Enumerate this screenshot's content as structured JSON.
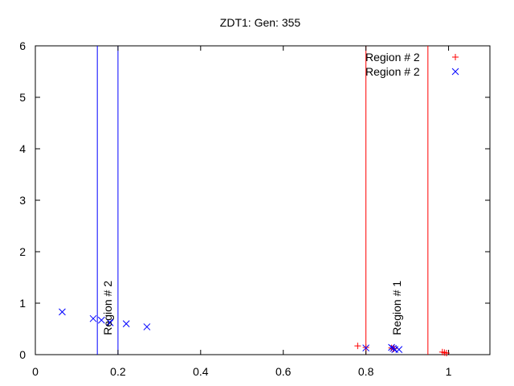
{
  "chart_data": {
    "type": "scatter",
    "title": "ZDT1: Gen: 355",
    "xlabel": "",
    "ylabel": "",
    "xlim": [
      0,
      1.1
    ],
    "ylim": [
      0,
      6
    ],
    "xticks": [
      0,
      0.2,
      0.4,
      0.6,
      0.8,
      1
    ],
    "xtick_labels": [
      "0",
      "0.2",
      "0.4",
      "0.6",
      "0.8",
      "1"
    ],
    "yticks": [
      0,
      1,
      2,
      3,
      4,
      5,
      6
    ],
    "ytick_labels": [
      "0",
      "1",
      "2",
      "3",
      "4",
      "5",
      "6"
    ],
    "grid": false,
    "legend_position": "top-right",
    "series": [
      {
        "name": "Region # 2",
        "marker": "plus",
        "color": "#ff0000",
        "points": [
          {
            "x": 0.78,
            "y": 0.17
          },
          {
            "x": 0.8,
            "y": 0.14
          },
          {
            "x": 0.862,
            "y": 0.13
          },
          {
            "x": 0.866,
            "y": 0.11
          },
          {
            "x": 0.868,
            "y": 0.12
          },
          {
            "x": 0.985,
            "y": 0.05
          },
          {
            "x": 0.99,
            "y": 0.04
          },
          {
            "x": 0.995,
            "y": 0.03
          }
        ]
      },
      {
        "name": "Region # 2",
        "marker": "cross",
        "color": "#0000ff",
        "points": [
          {
            "x": 0.065,
            "y": 0.83
          },
          {
            "x": 0.14,
            "y": 0.7
          },
          {
            "x": 0.16,
            "y": 0.67
          },
          {
            "x": 0.18,
            "y": 0.63
          },
          {
            "x": 0.181,
            "y": 0.62
          },
          {
            "x": 0.22,
            "y": 0.6
          },
          {
            "x": 0.27,
            "y": 0.54
          },
          {
            "x": 0.8,
            "y": 0.13
          },
          {
            "x": 0.862,
            "y": 0.14
          },
          {
            "x": 0.866,
            "y": 0.12
          },
          {
            "x": 0.87,
            "y": 0.1
          },
          {
            "x": 0.88,
            "y": 0.1
          }
        ]
      }
    ],
    "region_lines": [
      {
        "x": 0.15,
        "color": "#0000ff"
      },
      {
        "x": 0.2,
        "color": "#0000ff"
      },
      {
        "x": 0.8,
        "color": "#ff0000"
      },
      {
        "x": 0.95,
        "color": "#ff0000"
      }
    ],
    "annotations": [
      {
        "text": "Region # 2",
        "x": 0.175,
        "y": 0.38,
        "color": "#000000"
      },
      {
        "text": "Region # 1",
        "x": 0.875,
        "y": 0.38,
        "color": "#000000"
      }
    ]
  }
}
